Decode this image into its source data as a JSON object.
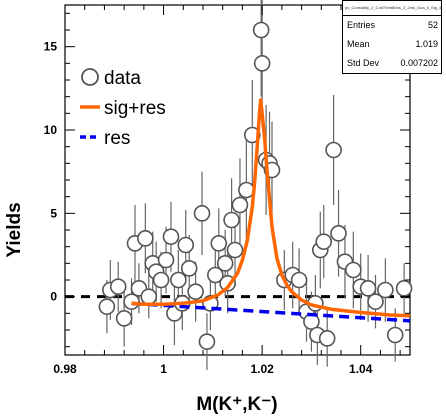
{
  "stats": {
    "title": "px_Constality_2_CosThetaBins_3_2mk_Dua_k_Sig_4_Prk_Rev",
    "rows": [
      {
        "label": "Entries",
        "value": "52"
      },
      {
        "label": "Mean",
        "value": "1.019"
      },
      {
        "label": "Std Dev",
        "value": "0.007202"
      }
    ]
  },
  "chart_data": {
    "type": "scatter",
    "title": "",
    "xlabel": "M(K⁺,K⁻)",
    "ylabel": "Yields",
    "xlim": [
      0.98,
      1.05
    ],
    "ylim": [
      -3.5,
      17.5
    ],
    "x_ticks": [
      0.98,
      1.0,
      1.02,
      1.04
    ],
    "x_tick_labels": [
      "0.98",
      "1",
      "1.02",
      "1.04"
    ],
    "y_ticks": [
      0,
      5,
      10,
      15
    ],
    "y_tick_labels": [
      "0",
      "5",
      "10",
      "15"
    ],
    "grid": false,
    "legend_position": "top-left",
    "legend": [
      {
        "label": "data",
        "style": "open-circle",
        "color": "#444444"
      },
      {
        "label": "sig+res",
        "style": "solid-line",
        "color": "#ff6600"
      },
      {
        "label": "res",
        "style": "dashed-line",
        "color": "#0000ee"
      }
    ],
    "series": [
      {
        "name": "data",
        "points": [
          {
            "x": 0.9885,
            "y": -0.6,
            "err": 1.6
          },
          {
            "x": 0.9892,
            "y": 0.4,
            "err": 1.8
          },
          {
            "x": 0.9908,
            "y": 0.6,
            "err": 1.5
          },
          {
            "x": 0.992,
            "y": -1.3,
            "err": 1.7
          },
          {
            "x": 0.9935,
            "y": -0.3,
            "err": 1.4
          },
          {
            "x": 0.9942,
            "y": 3.2,
            "err": 2.3
          },
          {
            "x": 0.995,
            "y": 0.5,
            "err": 1.5
          },
          {
            "x": 0.9963,
            "y": 3.5,
            "err": 2.1
          },
          {
            "x": 0.997,
            "y": 0.0,
            "err": 1.3
          },
          {
            "x": 0.9978,
            "y": 2.0,
            "err": 1.9
          },
          {
            "x": 0.9985,
            "y": 1.5,
            "err": 1.8
          },
          {
            "x": 0.9995,
            "y": 1.0,
            "err": 1.7
          },
          {
            "x": 1.0005,
            "y": 2.2,
            "err": 2.0
          },
          {
            "x": 1.0015,
            "y": 3.6,
            "err": 2.1
          },
          {
            "x": 1.0022,
            "y": -1.0,
            "err": 1.9
          },
          {
            "x": 1.003,
            "y": 1.0,
            "err": 1.8
          },
          {
            "x": 1.0038,
            "y": -0.4,
            "err": 1.6
          },
          {
            "x": 1.0045,
            "y": 3.1,
            "err": 2.1
          },
          {
            "x": 1.0052,
            "y": 1.7,
            "err": 2.0
          },
          {
            "x": 1.0065,
            "y": 0.3,
            "err": 1.8
          },
          {
            "x": 1.0078,
            "y": 5.0,
            "err": 2.5
          },
          {
            "x": 1.0088,
            "y": -2.7,
            "err": 1.7
          },
          {
            "x": 1.0095,
            "y": -0.4,
            "err": 1.6
          },
          {
            "x": 1.0105,
            "y": 1.3,
            "err": 1.8
          },
          {
            "x": 1.0112,
            "y": 3.2,
            "err": 2.1
          },
          {
            "x": 1.0125,
            "y": 2.0,
            "err": 2.0
          },
          {
            "x": 1.013,
            "y": 0.8,
            "err": 1.8
          },
          {
            "x": 1.0138,
            "y": 4.6,
            "err": 2.5
          },
          {
            "x": 1.0145,
            "y": 2.8,
            "err": 2.2
          },
          {
            "x": 1.0155,
            "y": 5.5,
            "err": 2.8
          },
          {
            "x": 1.0168,
            "y": 6.4,
            "err": 3.0
          },
          {
            "x": 1.018,
            "y": 9.7,
            "err": 3.3
          },
          {
            "x": 1.0198,
            "y": 16.0,
            "err": 4.0
          },
          {
            "x": 1.02,
            "y": 14.0,
            "err": 3.8
          },
          {
            "x": 1.0208,
            "y": 8.2,
            "err": 3.3
          },
          {
            "x": 1.0215,
            "y": 8.0,
            "err": 3.1
          },
          {
            "x": 1.022,
            "y": 7.6,
            "err": 2.9
          },
          {
            "x": 1.0245,
            "y": 1.0,
            "err": 1.8
          },
          {
            "x": 1.0262,
            "y": 1.3,
            "err": 2.0
          },
          {
            "x": 1.0275,
            "y": 1.0,
            "err": 1.9
          },
          {
            "x": 1.029,
            "y": -0.9,
            "err": 1.8
          },
          {
            "x": 1.03,
            "y": -1.5,
            "err": 1.8
          },
          {
            "x": 1.0308,
            "y": -0.4,
            "err": 1.7
          },
          {
            "x": 1.0312,
            "y": -2.3,
            "err": 1.8
          },
          {
            "x": 1.0318,
            "y": 2.8,
            "err": 2.3
          },
          {
            "x": 1.0325,
            "y": 3.3,
            "err": 2.2
          },
          {
            "x": 1.0332,
            "y": -2.5,
            "err": 1.7
          },
          {
            "x": 1.0345,
            "y": 8.8,
            "err": 3.3
          },
          {
            "x": 1.0355,
            "y": 3.8,
            "err": 2.6
          },
          {
            "x": 1.0368,
            "y": 2.1,
            "err": 2.2
          },
          {
            "x": 1.0385,
            "y": 1.6,
            "err": 2.3
          },
          {
            "x": 1.04,
            "y": 0.6,
            "err": 2.0
          },
          {
            "x": 1.0415,
            "y": 0.5,
            "err": 2.0
          },
          {
            "x": 1.043,
            "y": -0.3,
            "err": 1.6
          },
          {
            "x": 1.045,
            "y": 0.4,
            "err": 1.9
          },
          {
            "x": 1.047,
            "y": -2.3,
            "err": 1.6
          },
          {
            "x": 1.0488,
            "y": 0.5,
            "err": 1.5
          }
        ]
      },
      {
        "name": "sig+res",
        "x": [
          0.9935,
          0.996,
          1.0,
          1.004,
          1.008,
          1.011,
          1.013,
          1.015,
          1.016,
          1.017,
          1.018,
          1.0185,
          1.019,
          1.0195,
          1.0197,
          1.02,
          1.0205,
          1.021,
          1.022,
          1.023,
          1.024,
          1.025,
          1.026,
          1.028,
          1.03,
          1.034,
          1.04,
          1.046,
          1.05
        ],
        "values": [
          -0.4,
          -0.45,
          -0.45,
          -0.4,
          -0.25,
          0.1,
          0.55,
          1.4,
          2.2,
          3.4,
          5.4,
          6.9,
          9.0,
          11.2,
          11.8,
          11.0,
          9.5,
          7.5,
          4.2,
          2.3,
          1.3,
          0.7,
          0.3,
          -0.2,
          -0.5,
          -0.75,
          -0.95,
          -1.1,
          -1.15
        ]
      },
      {
        "name": "res",
        "x": [
          0.9935,
          1.05
        ],
        "values": [
          -0.4,
          -1.45
        ]
      }
    ],
    "reference_line": {
      "y": 0,
      "color": "#000000",
      "style": "dashed"
    }
  }
}
